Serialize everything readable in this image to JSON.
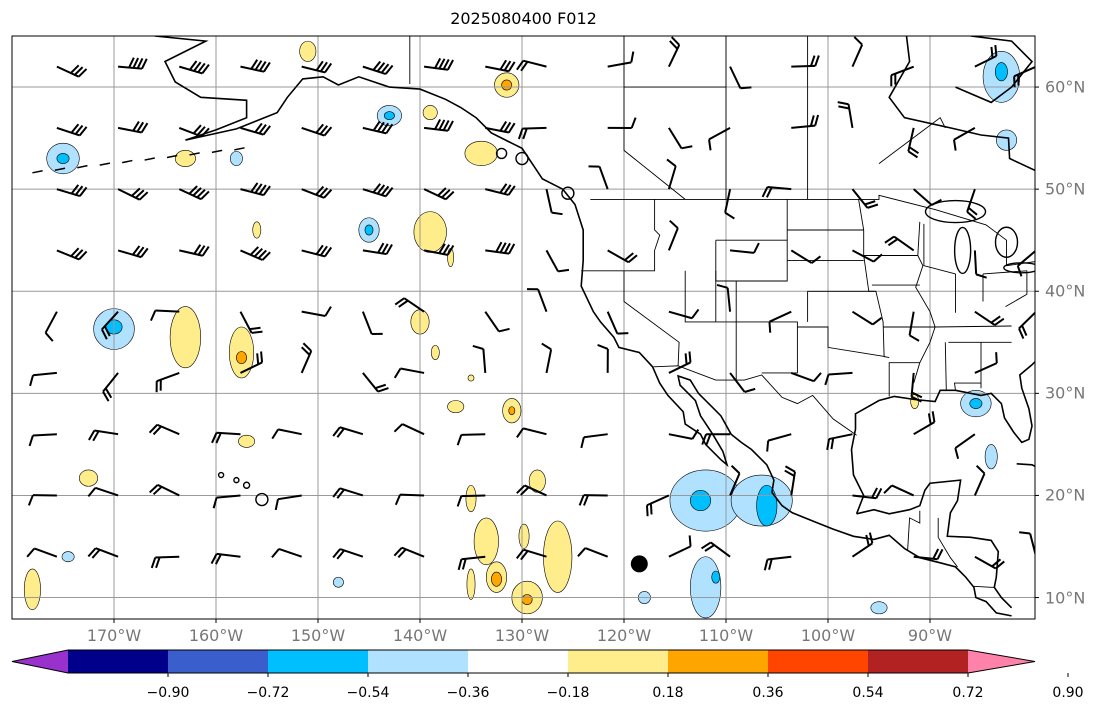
{
  "title": "2025080400 F012",
  "lon_labels": [
    {
      "lon": -170,
      "text": "170°W"
    },
    {
      "lon": -160,
      "text": "160°W"
    },
    {
      "lon": -150,
      "text": "150°W"
    },
    {
      "lon": -140,
      "text": "140°W"
    },
    {
      "lon": -130,
      "text": "130°W"
    },
    {
      "lon": -120,
      "text": "120°W"
    },
    {
      "lon": -110,
      "text": "110°W"
    },
    {
      "lon": -100,
      "text": "100°W"
    },
    {
      "lon": -90,
      "text": "90°W"
    }
  ],
  "lat_labels": [
    {
      "lat": 60,
      "text": "60°N"
    },
    {
      "lat": 50,
      "text": "50°N"
    },
    {
      "lat": 40,
      "text": "40°N"
    },
    {
      "lat": 30,
      "text": "30°N"
    },
    {
      "lat": 20,
      "text": "20°N"
    },
    {
      "lat": 10,
      "text": "10°N"
    }
  ],
  "colorbar": {
    "ticks": [
      "−0.90",
      "−0.72",
      "−0.54",
      "−0.36",
      "−0.18",
      "0.18",
      "0.36",
      "0.54",
      "0.72",
      "0.90"
    ],
    "colors": [
      "#9932cc",
      "#00008b",
      "#3a5fcd",
      "#00bfff",
      "#b0e2ff",
      "#ffffff",
      "#ffec8b",
      "#ffa500",
      "#ff4500",
      "#b22222",
      "#ff82ab"
    ]
  },
  "marker": {
    "lon": -118.5,
    "lat": 13.3
  }
}
